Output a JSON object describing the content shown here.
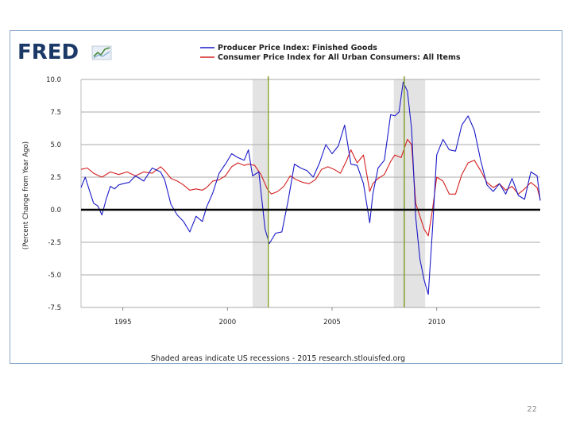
{
  "logo": {
    "text": "FRED"
  },
  "chart_data": {
    "type": "line",
    "ylabel": "(Percent Change from Year Ago)",
    "ylim": [
      -7.5,
      10.0
    ],
    "yticks": [
      10.0,
      7.5,
      5.0,
      2.5,
      0.0,
      -2.5,
      -5.0,
      -7.5
    ],
    "ytick_labels": [
      "10.0",
      "7.5",
      "5.0",
      "2.5",
      "0.0",
      "-2.5",
      "-5.0",
      "-7.5"
    ],
    "xlim": [
      1993.0,
      2014.95
    ],
    "xticks": [
      1995,
      2000,
      2005,
      2010
    ],
    "xtick_labels": [
      "1995",
      "2000",
      "2005",
      "2010"
    ],
    "recessions": [
      [
        2001.2,
        2001.9
      ],
      [
        2007.95,
        2009.45
      ]
    ],
    "vlines": [
      2001.95,
      2008.45
    ],
    "footnote": "Shaded areas indicate US recessions - 2015 research.stlouisfed.org",
    "series": [
      {
        "name": "Producer Price Index: Finished Goods",
        "color": "#1a1ac8",
        "x": [
          1993.0,
          1993.2,
          1993.4,
          1993.6,
          1993.8,
          1994.0,
          1994.2,
          1994.4,
          1994.6,
          1994.8,
          1995.0,
          1995.3,
          1995.6,
          1996.0,
          1996.4,
          1996.8,
          1997.0,
          1997.3,
          1997.6,
          1997.9,
          1998.2,
          1998.5,
          1998.8,
          1999.0,
          1999.3,
          1999.6,
          1999.9,
          2000.2,
          2000.5,
          2000.8,
          2001.0,
          2001.2,
          2001.5,
          2001.8,
          2002.0,
          2002.3,
          2002.6,
          2002.9,
          2003.2,
          2003.5,
          2003.8,
          2004.1,
          2004.4,
          2004.7,
          2005.0,
          2005.3,
          2005.6,
          2005.9,
          2006.2,
          2006.5,
          2006.8,
          2006.95,
          2007.2,
          2007.5,
          2007.8,
          2008.0,
          2008.2,
          2008.4,
          2008.6,
          2008.8,
          2009.0,
          2009.2,
          2009.4,
          2009.6,
          2009.8,
          2010.0,
          2010.3,
          2010.6,
          2010.9,
          2011.2,
          2011.5,
          2011.8,
          2012.1,
          2012.4,
          2012.7,
          2013.0,
          2013.3,
          2013.6,
          2013.9,
          2014.2,
          2014.5,
          2014.8,
          2014.95
        ],
        "values": [
          1.7,
          2.5,
          1.5,
          0.5,
          0.3,
          -0.4,
          0.8,
          1.8,
          1.6,
          1.9,
          2.0,
          2.1,
          2.6,
          2.2,
          3.2,
          2.9,
          2.3,
          0.4,
          -0.4,
          -0.9,
          -1.7,
          -0.5,
          -0.9,
          0.2,
          1.3,
          2.8,
          3.5,
          4.3,
          4.0,
          3.8,
          4.6,
          2.6,
          2.9,
          -1.5,
          -2.6,
          -1.8,
          -1.7,
          0.7,
          3.5,
          3.2,
          3.0,
          2.5,
          3.6,
          5.0,
          4.3,
          4.9,
          6.5,
          3.5,
          3.4,
          2.0,
          -1.0,
          1.2,
          3.2,
          3.8,
          7.3,
          7.2,
          7.5,
          9.8,
          9.1,
          6.2,
          -0.6,
          -3.8,
          -5.4,
          -6.5,
          -1.5,
          4.2,
          5.4,
          4.6,
          4.5,
          6.5,
          7.2,
          6.1,
          3.8,
          1.9,
          1.4,
          2.0,
          1.2,
          2.4,
          1.1,
          0.8,
          2.9,
          2.6,
          0.7
        ]
      },
      {
        "name": "Consumer Price Index for All Urban Consumers: All Items",
        "color": "#d42020",
        "x": [
          1993.0,
          1993.3,
          1993.6,
          1994.0,
          1994.4,
          1994.8,
          1995.2,
          1995.6,
          1996.0,
          1996.4,
          1996.8,
          1997.0,
          1997.3,
          1997.6,
          1997.9,
          1998.2,
          1998.5,
          1998.8,
          1999.0,
          1999.3,
          1999.6,
          1999.9,
          2000.2,
          2000.5,
          2000.8,
          2001.0,
          2001.3,
          2001.6,
          2001.9,
          2002.1,
          2002.4,
          2002.7,
          2003.0,
          2003.3,
          2003.6,
          2003.9,
          2004.2,
          2004.5,
          2004.8,
          2005.1,
          2005.4,
          2005.7,
          2005.9,
          2006.2,
          2006.5,
          2006.8,
          2006.95,
          2007.2,
          2007.5,
          2007.8,
          2008.0,
          2008.3,
          2008.6,
          2008.8,
          2009.0,
          2009.2,
          2009.4,
          2009.6,
          2009.8,
          2010.0,
          2010.3,
          2010.6,
          2010.9,
          2011.2,
          2011.5,
          2011.8,
          2012.1,
          2012.4,
          2012.7,
          2013.0,
          2013.3,
          2013.6,
          2013.9,
          2014.2,
          2014.5,
          2014.8,
          2014.95
        ],
        "values": [
          3.1,
          3.2,
          2.8,
          2.5,
          2.9,
          2.7,
          2.9,
          2.6,
          2.9,
          2.8,
          3.3,
          3.0,
          2.4,
          2.2,
          1.9,
          1.5,
          1.6,
          1.5,
          1.7,
          2.2,
          2.3,
          2.6,
          3.3,
          3.6,
          3.4,
          3.5,
          3.4,
          2.7,
          1.6,
          1.2,
          1.4,
          1.8,
          2.6,
          2.3,
          2.1,
          2.0,
          2.3,
          3.1,
          3.3,
          3.1,
          2.8,
          3.8,
          4.6,
          3.6,
          4.2,
          1.4,
          2.0,
          2.4,
          2.7,
          3.7,
          4.2,
          4.0,
          5.4,
          5.0,
          0.5,
          -0.5,
          -1.5,
          -2.0,
          0.0,
          2.5,
          2.2,
          1.2,
          1.2,
          2.7,
          3.6,
          3.8,
          3.0,
          2.1,
          1.7,
          2.0,
          1.5,
          1.8,
          1.2,
          1.6,
          2.1,
          1.7,
          0.8
        ]
      }
    ]
  },
  "page": {
    "number": "22"
  }
}
